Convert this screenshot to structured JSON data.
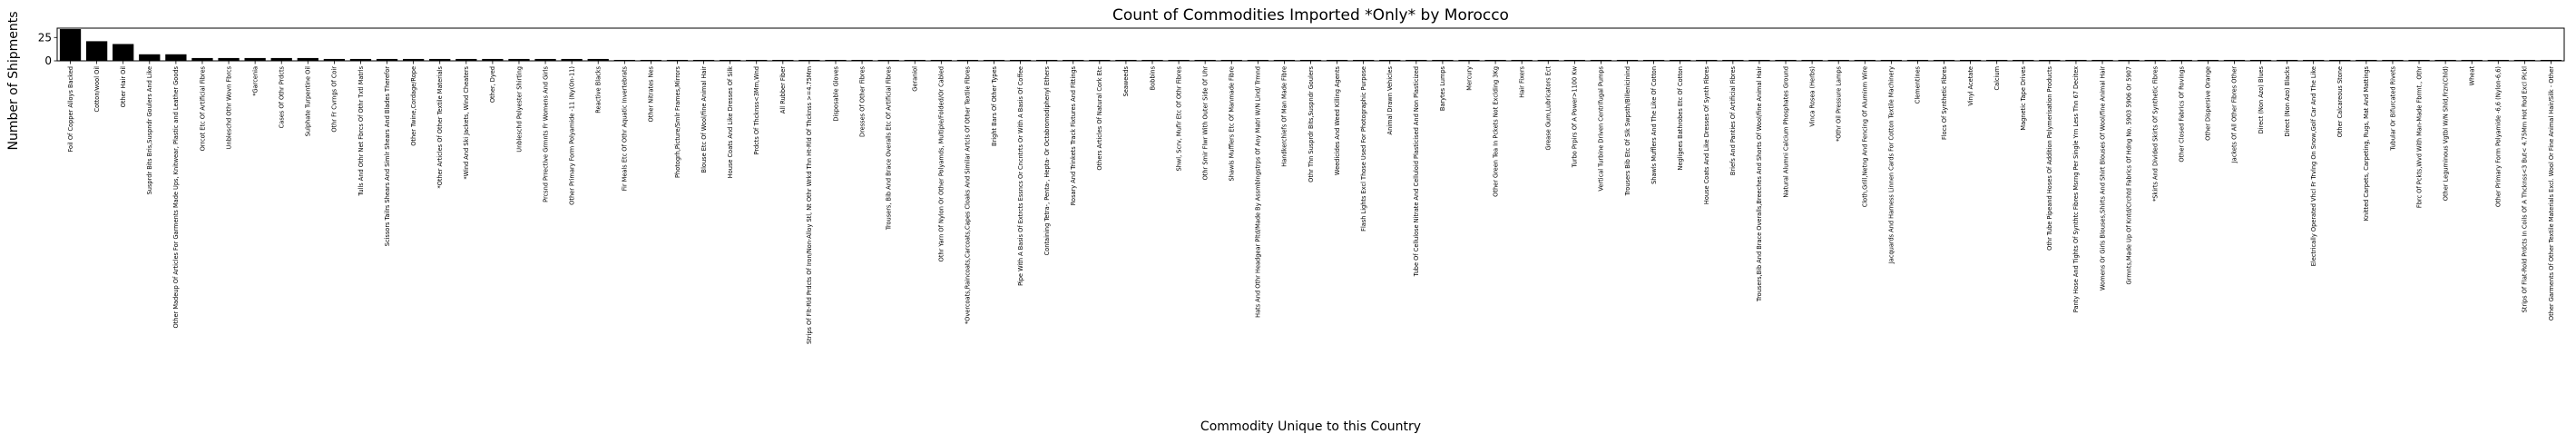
{
  "chart_data": {
    "type": "bar",
    "title": "Count of Commodities Imported *Only* by Morocco",
    "xlabel": "Commodity Unique to this Country",
    "ylabel": "Number of Shipments",
    "ylim": [
      0,
      35
    ],
    "yticks": [
      0,
      25
    ],
    "bar_color": "#000000",
    "categories": [
      "Foil Of Copper Alloys Backed",
      "Cotton/wool Oil",
      "Other Hair Oil",
      "Susprdr Bits Bris,Suspndr Goulers And Like",
      "Other Madeup Of Articles For Garments Made Ups, Knitwear, Plastic and Leather Goods",
      "Orrcot Etc Of Artificial Fibres",
      "Unbleschd Othr Wovn Fbrcs",
      "*Garcenia",
      "Cases Of Othr Prdcts",
      "Sulphate Turpentine Oil",
      "Othr Fr Cvrngs Of Coir",
      "Tulls And Othr Net Fbrcs Of Othr Txtl Matrls",
      "Scissors Tailrs Shears And Simlr Shears And Blades Therefor",
      "Other Twine,Cordage/Rope",
      "*Other Articles Of Other Textile Materials",
      "*Wind And Ski Jackets, Wind Cheaters",
      "Other, Dyed",
      "Unbleschd Polyester Shirting",
      "Prcsnd Prrective Grmnts Fr Womens And Girls",
      "Other Primary Form Polyamide -11 (Ny(On-11)",
      "Reactive Blacks",
      "Fir Meals Etc Of Othr Aquatic Invertebrats",
      "Other Nitrates Nes",
      "Photogrh,Picture/Smlr Frames,Mirrors",
      "Blouse Etc Of Wool/fine Animal Hair",
      "House Coats And Like Dresses Of Silk",
      "Prdcts Of Thcknss<3Mm,Wnd",
      "All Rubber Fiber",
      "Strips Of Flt-Rld Prdcts Of Iron/Non-Alloy Stl, Nt Othr Wrkd Thn Ht-Rld Of Thcknss >=4.75Mm",
      "Disposable Gloves",
      "Dresses Of Other Fibres",
      "Trousers, Bib And Brace Overalls Etc Of Artificial Fibres",
      "Geraniol",
      "Othr Yarn Of Nylon Or Other Polyamds, Multiple/Folded/Or Cabled",
      "*Overcoats,Raincoats,Carcoats,Capes Cloaks And Similar Artcls Of Other Textile Fibres",
      "Bright Bars Of Other Types",
      "Pipe With A Basis Of Extrcts Essncs Or Cncntrts Or With A Basis Of Coffee",
      "Containing Tetra-, Penta-, Hepta- Or Octabromodiphenyl Ethers",
      "Rosary And Trinkets Track Fixtures And Fittings",
      "Others Articles Of Natural Cork Etc",
      "Seaweeds",
      "Bobbins",
      "Shwl, Scrv, Mufir Etc Of Othr Fibres",
      "Othr Smir Flwr With Outer Side Of Uhr",
      "Shawls Mufflers Etc Of Manmade Fibre",
      "Hats And Othr Headgear Pltd/Made By Assmblngstrps Of Any Matri W/N Lind/ Trmnd",
      "Handkerchiefs Of Man Made Fibre",
      "Othr Thn Susprdr Bits,Suspndr Goulers",
      "Weedicides And Weed Killing Agents",
      "Flash Lights Excl Those Used For Photographic Purpose",
      "Animal Drawn Vehicles",
      "Tube Of Cellulose Nitrate And Celluloid Plasticised And Non Plasticized",
      "Barytes Lumps",
      "Mercury",
      "Other Green Tea In Pckets Not Exclding 3Kg",
      "Hair Fixers",
      "Grease Gum,Lubricators Ect",
      "Turbo Prpirs Of A Power>1100 Kw",
      "Vertical Turbine Driven Centrifugal Pumps",
      "Trousers Bib Etc Of Slk Swpsth/Billenicinind",
      "Shawls Mufflers And The Like Of Cotton",
      "Negligees Bathrobes Etc Of Cotton",
      "House Coats And Like Dresses Of Synth Fibres",
      "Briefs And Panties Of Artificial Fibres",
      "Trousers,Bib And Brace Overalls,Breeches And Shorts Of Wool/fine Animal Hair",
      "Natural Alumni Calcium Phosphates Ground",
      "Vinca Rosea (Herbs)",
      "*Othr Oil Pressure Lamps",
      "Cloth,Grill,Netng And Fencing Of Aluminm Wire",
      "Jacquards And Harness Linnen Cards For Cotton Textile Machinery",
      "Clementines",
      "Flocs Of Synthetic Fibres",
      "Vinyl Acetate",
      "Calcium",
      "Magnetic Tape Drives",
      "Othr Tube Pipeand Hoses Of Addition Polymerisation Products",
      "Panty Hose And Tights Of Synthtc Fibres Msrng Per Single Yrn Less Thn 67 Decitex",
      "Womens Or Girls Blouses,Shirts And Shirt Blouses Of Wool/fine Animal Hair",
      "Grmnts,Made Up Of Kntd/Crchtd Fabrics Of Hdng No. 5903 5906 Or 5907",
      "*Skirts And Divided Skirts Of Synthetic Fibres",
      "Other Closed Fabrics Of Rovings",
      "Other Dispersive Orange",
      "Jackets Of All Other Fibres Other",
      "Direct (Non Azo) Blues",
      "Direct (Non Azo) Blacks",
      "Electrically Operated Vhcl Fr Trvlng On Snow,Golf Car And The Like",
      "Other Calcareous Stone",
      "Knitted Carpets, Carpeting, Rugs, Mat And Mattings",
      "Tubular Or Bifurcated Rivets",
      "Fbrc Of Pckts,Wvd With Man-Made Fbrmt., Othr",
      "Other Leguminous Vgtbl W/N Shld,Frzn(Chld)",
      "Wheat",
      "Other Primary Form Polyamide -6,6 (Nylon-6,6)",
      "Strips Of Flat-Rold Prdcts In Coils Of A Thcknss<3 But< 4.75Mm Hot Rod Excl Pickl",
      "Other Garments Of Other Textile Materials Excl. Wool Or Fine Animal Hair/Silk - Other"
    ],
    "values": [
      34,
      21,
      18,
      7,
      7,
      3,
      3,
      3,
      3,
      3,
      2,
      2,
      2,
      2,
      2,
      2,
      2,
      2,
      2,
      2,
      2,
      1,
      1,
      1,
      1,
      1,
      1,
      1,
      1,
      1,
      1,
      1,
      1,
      1,
      1,
      1,
      1,
      1,
      1,
      1,
      1,
      1,
      1,
      1,
      1,
      1,
      1,
      1,
      1,
      1,
      1,
      1,
      1,
      1,
      1,
      1,
      1,
      1,
      1,
      1,
      1,
      1,
      1,
      1,
      1,
      1,
      1,
      1,
      1,
      1,
      1,
      1,
      1,
      1,
      1,
      1,
      1,
      1,
      1,
      1,
      1,
      1,
      1,
      1,
      1,
      1,
      1,
      1,
      1,
      1,
      1,
      1,
      1,
      1,
      1
    ]
  }
}
